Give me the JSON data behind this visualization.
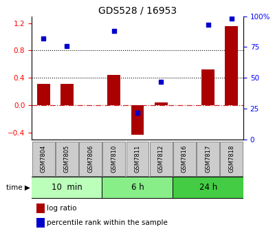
{
  "title": "GDS528 / 16953",
  "samples": [
    "GSM7804",
    "GSM7805",
    "GSM7806",
    "GSM7810",
    "GSM7811",
    "GSM7812",
    "GSM7816",
    "GSM7817",
    "GSM7818"
  ],
  "log_ratio": [
    0.31,
    0.31,
    0.0,
    0.44,
    -0.43,
    0.04,
    0.0,
    0.52,
    1.15
  ],
  "percentile": [
    82,
    76,
    null,
    88,
    22,
    47,
    null,
    93,
    98
  ],
  "groups": [
    {
      "label": "10  min",
      "start": 0,
      "end": 3,
      "color": "#bbffbb"
    },
    {
      "label": "6 h",
      "start": 3,
      "end": 6,
      "color": "#88ee88"
    },
    {
      "label": "24 h",
      "start": 6,
      "end": 9,
      "color": "#44cc44"
    }
  ],
  "ylim_left": [
    -0.5,
    1.3
  ],
  "ylim_right": [
    0,
    100
  ],
  "yticks_left": [
    -0.4,
    0.0,
    0.4,
    0.8,
    1.2
  ],
  "yticks_right": [
    0,
    25,
    50,
    75,
    100
  ],
  "bar_color": "#aa0000",
  "dot_color": "#0000cc",
  "hline_color": "#cc2222",
  "figsize": [
    4.0,
    3.36
  ],
  "dpi": 100
}
